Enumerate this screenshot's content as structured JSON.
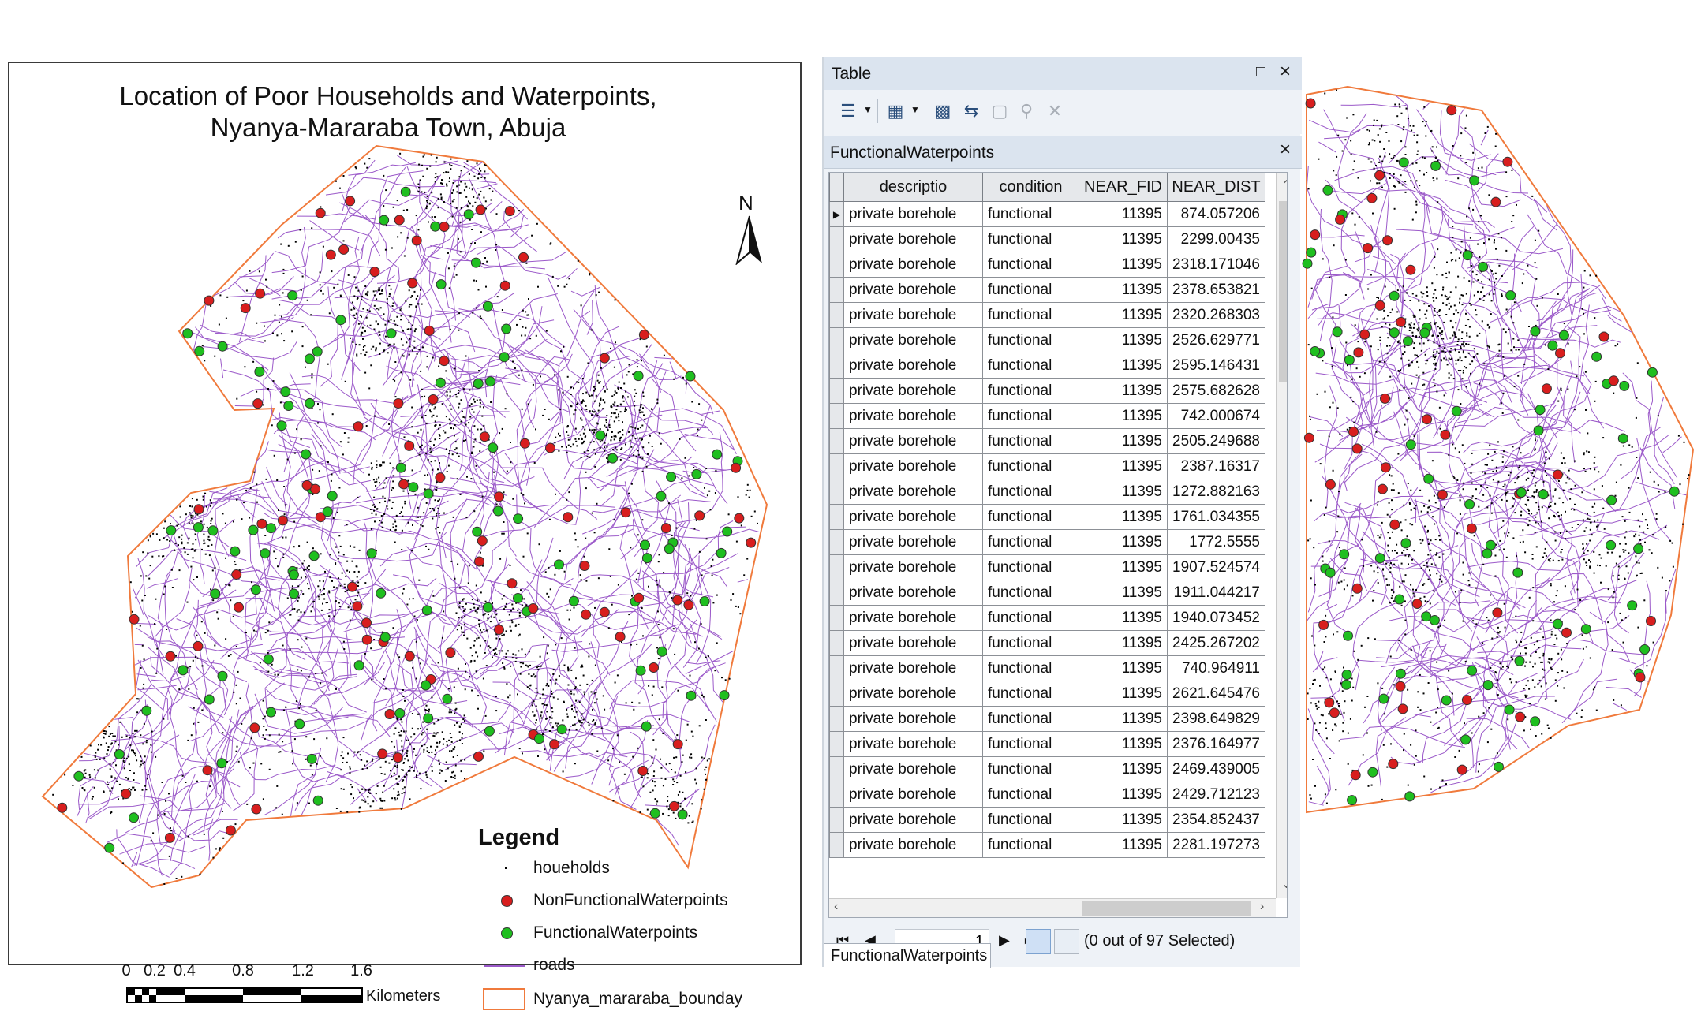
{
  "map": {
    "title_line1": "Location of Poor Households and Waterpoints,",
    "title_line2": "Nyanya-Mararaba Town, Abuja",
    "north_label": "N",
    "legend": {
      "title": "Legend",
      "items": [
        {
          "label": "houeholds",
          "symbol": "dot-icon"
        },
        {
          "label": "NonFunctionalWaterpoints",
          "symbol": "red-circle-icon",
          "color": "#d81e1e"
        },
        {
          "label": "FunctionalWaterpoints",
          "symbol": "green-circle-icon",
          "color": "#1fbf1f"
        },
        {
          "label": "roads",
          "symbol": "purple-line-icon",
          "color": "#9b59c9"
        },
        {
          "label": "Nyanya_mararaba_bounday",
          "symbol": "orange-box-icon",
          "color": "#f07a3c"
        }
      ]
    },
    "scale": {
      "ticks": [
        "0",
        "0.2",
        "0.4",
        "0.8",
        "1.2",
        "1.6"
      ],
      "units": "Kilometers"
    }
  },
  "table_window": {
    "title": "Table",
    "layer_name": "FunctionalWaterpoints",
    "toolbar": {
      "buttons": [
        "table-options-icon",
        "related-tables-icon",
        "select-by-attributes-icon",
        "switch-selection-icon",
        "clear-selection-icon",
        "zoom-to-selected-icon",
        "delete-selected-icon"
      ]
    },
    "columns": [
      "descriptio",
      "condition",
      "NEAR_FID",
      "NEAR_DIST"
    ],
    "rows": [
      {
        "descriptio": "private borehole",
        "condition": "functional",
        "near_fid": "11395",
        "near_dist": "874.057206"
      },
      {
        "descriptio": "private borehole",
        "condition": "functional",
        "near_fid": "11395",
        "near_dist": "2299.00435"
      },
      {
        "descriptio": "private borehole",
        "condition": "functional",
        "near_fid": "11395",
        "near_dist": "2318.171046"
      },
      {
        "descriptio": "private borehole",
        "condition": "functional",
        "near_fid": "11395",
        "near_dist": "2378.653821"
      },
      {
        "descriptio": "private borehole",
        "condition": "functional",
        "near_fid": "11395",
        "near_dist": "2320.268303"
      },
      {
        "descriptio": "private borehole",
        "condition": "functional",
        "near_fid": "11395",
        "near_dist": "2526.629771"
      },
      {
        "descriptio": "private borehole",
        "condition": "functional",
        "near_fid": "11395",
        "near_dist": "2595.146431"
      },
      {
        "descriptio": "private borehole",
        "condition": "functional",
        "near_fid": "11395",
        "near_dist": "2575.682628"
      },
      {
        "descriptio": "private borehole",
        "condition": "functional",
        "near_fid": "11395",
        "near_dist": "742.000674"
      },
      {
        "descriptio": "private borehole",
        "condition": "functional",
        "near_fid": "11395",
        "near_dist": "2505.249688"
      },
      {
        "descriptio": "private borehole",
        "condition": "functional",
        "near_fid": "11395",
        "near_dist": "2387.16317"
      },
      {
        "descriptio": "private borehole",
        "condition": "functional",
        "near_fid": "11395",
        "near_dist": "1272.882163"
      },
      {
        "descriptio": "private borehole",
        "condition": "functional",
        "near_fid": "11395",
        "near_dist": "1761.034355"
      },
      {
        "descriptio": "private borehole",
        "condition": "functional",
        "near_fid": "11395",
        "near_dist": "1772.5555"
      },
      {
        "descriptio": "private borehole",
        "condition": "functional",
        "near_fid": "11395",
        "near_dist": "1907.524574"
      },
      {
        "descriptio": "private borehole",
        "condition": "functional",
        "near_fid": "11395",
        "near_dist": "1911.044217"
      },
      {
        "descriptio": "private borehole",
        "condition": "functional",
        "near_fid": "11395",
        "near_dist": "1940.073452"
      },
      {
        "descriptio": "private borehole",
        "condition": "functional",
        "near_fid": "11395",
        "near_dist": "2425.267202"
      },
      {
        "descriptio": "private borehole",
        "condition": "functional",
        "near_fid": "11395",
        "near_dist": "740.964911"
      },
      {
        "descriptio": "private borehole",
        "condition": "functional",
        "near_fid": "11395",
        "near_dist": "2621.645476"
      },
      {
        "descriptio": "private borehole",
        "condition": "functional",
        "near_fid": "11395",
        "near_dist": "2398.649829"
      },
      {
        "descriptio": "private borehole",
        "condition": "functional",
        "near_fid": "11395",
        "near_dist": "2376.164977"
      },
      {
        "descriptio": "private borehole",
        "condition": "functional",
        "near_fid": "11395",
        "near_dist": "2469.439005"
      },
      {
        "descriptio": "private borehole",
        "condition": "functional",
        "near_fid": "11395",
        "near_dist": "2429.712123"
      },
      {
        "descriptio": "private borehole",
        "condition": "functional",
        "near_fid": "11395",
        "near_dist": "2354.852437"
      },
      {
        "descriptio": "private borehole",
        "condition": "functional",
        "near_fid": "11395",
        "near_dist": "2281.197273"
      }
    ],
    "nav": {
      "current_record": "1",
      "selection_status": "(0 out of 97 Selected)"
    },
    "tab_label": "FunctionalWaterpoints"
  }
}
